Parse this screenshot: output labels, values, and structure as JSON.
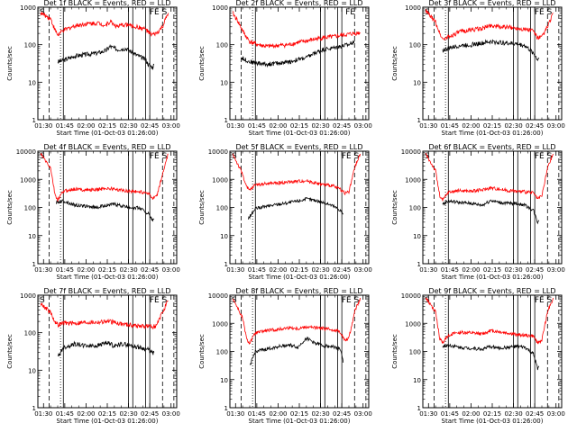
{
  "figure": {
    "xlabel": "Start Time (01-Oct-03 01:26:00)",
    "ylabel": "Counts/sec",
    "x_ticks": [
      "01:30",
      "01:45",
      "02:00",
      "02:15",
      "02:30",
      "02:45",
      "03:00"
    ],
    "x_tick_minutes": [
      90,
      105,
      120,
      135,
      150,
      165,
      180
    ],
    "y_ticks": [
      1,
      10,
      100,
      1000,
      10000
    ],
    "y_tick_labels": [
      "1",
      "10",
      "100",
      "1000",
      "10000"
    ],
    "colors": {
      "events": "#000000",
      "lld": "#ff0000"
    }
  },
  "chart_data": [
    {
      "type": "line",
      "title": "Det 1f BLACK = Events, RED = LLD",
      "xlim": [
        86,
        184
      ],
      "ylim": [
        1,
        1000
      ],
      "y_scale": "log",
      "marker_labels": {
        "left": "S",
        "right": "FE S"
      },
      "series": [
        {
          "name": "Events",
          "color": "#000000",
          "x": [
            100,
            104,
            112,
            120,
            128,
            134,
            137,
            142,
            148,
            155,
            162,
            164,
            167,
            168
          ],
          "y": [
            35,
            38,
            50,
            55,
            60,
            70,
            90,
            75,
            80,
            55,
            40,
            30,
            25,
            30
          ]
        },
        {
          "name": "LLD",
          "color": "#ff0000",
          "x": [
            88,
            95,
            98,
            100,
            104,
            112,
            120,
            128,
            134,
            137,
            142,
            148,
            155,
            162,
            166,
            170,
            174,
            178
          ],
          "y": [
            700,
            500,
            250,
            180,
            240,
            320,
            360,
            380,
            330,
            420,
            300,
            350,
            300,
            260,
            180,
            200,
            300,
            700
          ]
        }
      ]
    },
    {
      "type": "line",
      "title": "Det 2f BLACK = Events, RED = LLD",
      "xlim": [
        86,
        184
      ],
      "ylim": [
        1,
        1000
      ],
      "y_scale": "log",
      "marker_labels": {
        "left": "",
        "right": "FE"
      },
      "series": [
        {
          "name": "Events",
          "color": "#000000",
          "x": [
            94,
            100,
            106,
            112,
            120,
            128,
            134,
            140,
            146,
            152,
            158,
            164,
            170,
            174
          ],
          "y": [
            45,
            35,
            32,
            30,
            32,
            35,
            40,
            45,
            60,
            75,
            80,
            90,
            100,
            130
          ]
        },
        {
          "name": "LLD",
          "color": "#ff0000",
          "x": [
            88,
            92,
            96,
            100,
            106,
            112,
            120,
            128,
            134,
            140,
            146,
            152,
            158,
            164,
            170,
            174,
            178
          ],
          "y": [
            700,
            400,
            200,
            120,
            100,
            90,
            95,
            100,
            115,
            125,
            140,
            155,
            160,
            175,
            190,
            200,
            210
          ]
        }
      ]
    },
    {
      "type": "line",
      "title": "Det 3f BLACK = Events, RED = LLD",
      "xlim": [
        86,
        184
      ],
      "ylim": [
        1,
        1000
      ],
      "y_scale": "log",
      "marker_labels": {
        "left": "S",
        "right": "FE S"
      },
      "series": [
        {
          "name": "Events",
          "color": "#000000",
          "x": [
            100,
            104,
            112,
            120,
            128,
            134,
            140,
            146,
            152,
            158,
            164,
            167,
            168
          ],
          "y": [
            70,
            80,
            95,
            100,
            110,
            120,
            115,
            110,
            105,
            95,
            60,
            40,
            45
          ]
        },
        {
          "name": "LLD",
          "color": "#ff0000",
          "x": [
            88,
            95,
            98,
            100,
            104,
            112,
            120,
            128,
            134,
            140,
            146,
            152,
            158,
            164,
            167,
            170,
            174,
            178
          ],
          "y": [
            800,
            400,
            200,
            140,
            160,
            220,
            250,
            270,
            330,
            300,
            290,
            280,
            260,
            240,
            150,
            160,
            300,
            700
          ]
        }
      ]
    },
    {
      "type": "line",
      "title": "Det 4f BLACK = Events, RED = LLD",
      "xlim": [
        86,
        184
      ],
      "ylim": [
        1,
        10000
      ],
      "y_scale": "log",
      "marker_labels": {
        "left": "S",
        "right": "FE S"
      },
      "series": [
        {
          "name": "Events",
          "color": "#000000",
          "x": [
            99,
            104,
            112,
            120,
            128,
            134,
            140,
            146,
            152,
            158,
            164,
            167,
            168
          ],
          "y": [
            150,
            170,
            120,
            110,
            100,
            120,
            130,
            110,
            100,
            95,
            60,
            35,
            40
          ]
        },
        {
          "name": "LLD",
          "color": "#ff0000",
          "x": [
            88,
            95,
            98,
            100,
            104,
            112,
            120,
            128,
            134,
            140,
            146,
            152,
            158,
            164,
            167,
            170,
            174,
            178
          ],
          "y": [
            8000,
            2500,
            300,
            180,
            380,
            450,
            420,
            430,
            480,
            450,
            400,
            380,
            360,
            330,
            200,
            250,
            1500,
            8000
          ]
        }
      ]
    },
    {
      "type": "line",
      "title": "Det 5f BLACK = Events, RED = LLD",
      "xlim": [
        86,
        184
      ],
      "ylim": [
        1,
        10000
      ],
      "y_scale": "log",
      "marker_labels": {
        "left": "S",
        "right": "FE S"
      },
      "series": [
        {
          "name": "Events",
          "color": "#000000",
          "x": [
            99,
            104,
            112,
            120,
            128,
            134,
            140,
            146,
            152,
            158,
            164,
            166
          ],
          "y": [
            40,
            90,
            110,
            130,
            150,
            170,
            200,
            180,
            150,
            120,
            80,
            60
          ]
        },
        {
          "name": "LLD",
          "color": "#ff0000",
          "x": [
            88,
            95,
            98,
            100,
            104,
            112,
            120,
            128,
            134,
            140,
            146,
            152,
            158,
            164,
            167,
            170,
            174,
            178
          ],
          "y": [
            8000,
            1500,
            500,
            400,
            650,
            700,
            750,
            800,
            850,
            900,
            750,
            650,
            600,
            450,
            330,
            350,
            2500,
            8000
          ]
        }
      ]
    },
    {
      "type": "line",
      "title": "Det 6f BLACK = Events, RED = LLD",
      "xlim": [
        86,
        184
      ],
      "ylim": [
        1,
        10000
      ],
      "y_scale": "log",
      "marker_labels": {
        "left": "S",
        "right": "FE S"
      },
      "series": [
        {
          "name": "Events",
          "color": "#000000",
          "x": [
            100,
            104,
            112,
            120,
            128,
            134,
            140,
            146,
            152,
            158,
            164,
            167,
            168
          ],
          "y": [
            130,
            170,
            150,
            140,
            120,
            180,
            150,
            140,
            140,
            120,
            80,
            30,
            35
          ]
        },
        {
          "name": "LLD",
          "color": "#ff0000",
          "x": [
            88,
            95,
            98,
            100,
            104,
            112,
            120,
            128,
            134,
            140,
            146,
            152,
            158,
            164,
            167,
            170,
            174,
            178
          ],
          "y": [
            8000,
            2000,
            250,
            180,
            350,
            400,
            380,
            420,
            500,
            450,
            400,
            380,
            360,
            330,
            200,
            250,
            2500,
            8000
          ]
        }
      ]
    },
    {
      "type": "line",
      "title": "Det 7f BLACK = Events, RED = LLD",
      "xlim": [
        86,
        184
      ],
      "ylim": [
        1,
        1000
      ],
      "y_scale": "log",
      "marker_labels": {
        "left": "S",
        "right": "FE S"
      },
      "series": [
        {
          "name": "Events",
          "color": "#000000",
          "x": [
            100,
            104,
            112,
            120,
            128,
            134,
            140,
            146,
            152,
            158,
            164,
            167,
            168
          ],
          "y": [
            22,
            40,
            50,
            45,
            45,
            55,
            45,
            50,
            45,
            40,
            35,
            28,
            30
          ]
        },
        {
          "name": "LLD",
          "color": "#ff0000",
          "x": [
            88,
            95,
            98,
            100,
            104,
            112,
            120,
            128,
            134,
            140,
            146,
            152,
            158,
            164,
            167,
            170,
            174,
            178
          ],
          "y": [
            600,
            350,
            200,
            160,
            180,
            180,
            190,
            190,
            200,
            190,
            170,
            160,
            150,
            150,
            140,
            160,
            350,
            700
          ]
        }
      ]
    },
    {
      "type": "line",
      "title": "Det 8f BLACK = Events, RED = LLD",
      "xlim": [
        86,
        184
      ],
      "ylim": [
        1,
        10000
      ],
      "y_scale": "log",
      "marker_labels": {
        "left": "S",
        "right": "FE S"
      },
      "series": [
        {
          "name": "Events",
          "color": "#000000",
          "x": [
            100,
            104,
            112,
            120,
            128,
            134,
            140,
            146,
            152,
            158,
            164,
            166
          ],
          "y": [
            30,
            100,
            120,
            150,
            170,
            140,
            300,
            200,
            160,
            150,
            120,
            40
          ]
        },
        {
          "name": "LLD",
          "color": "#ff0000",
          "x": [
            88,
            95,
            98,
            100,
            104,
            112,
            120,
            128,
            134,
            140,
            146,
            152,
            158,
            164,
            167,
            170,
            174,
            178
          ],
          "y": [
            8000,
            1500,
            250,
            200,
            450,
            550,
            600,
            700,
            650,
            750,
            700,
            650,
            600,
            500,
            250,
            300,
            2500,
            8000
          ]
        }
      ]
    },
    {
      "type": "line",
      "title": "Det 9f BLACK = Events, RED = LLD",
      "xlim": [
        86,
        184
      ],
      "ylim": [
        1,
        10000
      ],
      "y_scale": "log",
      "marker_labels": {
        "left": "S",
        "right": "FE S"
      },
      "series": [
        {
          "name": "Events",
          "color": "#000000",
          "x": [
            100,
            104,
            112,
            120,
            128,
            134,
            140,
            146,
            152,
            158,
            164,
            167,
            168
          ],
          "y": [
            150,
            170,
            140,
            130,
            120,
            150,
            130,
            140,
            150,
            140,
            80,
            25,
            30
          ]
        },
        {
          "name": "LLD",
          "color": "#ff0000",
          "x": [
            88,
            95,
            98,
            100,
            104,
            112,
            120,
            128,
            134,
            140,
            146,
            152,
            158,
            164,
            167,
            170,
            174,
            178
          ],
          "y": [
            8000,
            2500,
            280,
            200,
            380,
            480,
            450,
            420,
            550,
            500,
            450,
            400,
            380,
            350,
            200,
            250,
            2500,
            8000
          ]
        }
      ]
    }
  ]
}
